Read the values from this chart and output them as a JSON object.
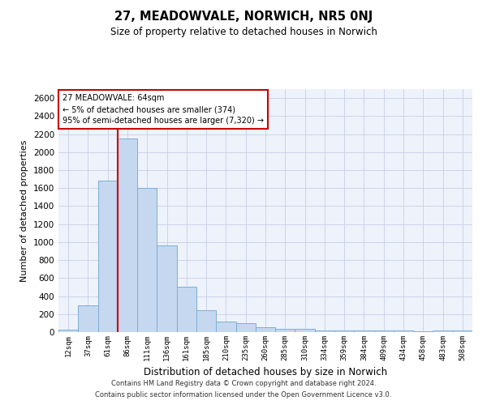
{
  "title": "27, MEADOWVALE, NORWICH, NR5 0NJ",
  "subtitle": "Size of property relative to detached houses in Norwich",
  "xlabel": "Distribution of detached houses by size in Norwich",
  "ylabel": "Number of detached properties",
  "categories": [
    "12sqm",
    "37sqm",
    "61sqm",
    "86sqm",
    "111sqm",
    "136sqm",
    "161sqm",
    "185sqm",
    "210sqm",
    "235sqm",
    "260sqm",
    "285sqm",
    "310sqm",
    "334sqm",
    "359sqm",
    "384sqm",
    "409sqm",
    "434sqm",
    "458sqm",
    "483sqm",
    "508sqm"
  ],
  "values": [
    25,
    300,
    1680,
    2150,
    1600,
    960,
    505,
    240,
    120,
    100,
    50,
    40,
    35,
    20,
    20,
    20,
    20,
    20,
    5,
    20,
    20
  ],
  "bar_color": "#c5d8f0",
  "bar_edge_color": "#7baed4",
  "ylim": [
    0,
    2700
  ],
  "yticks": [
    0,
    200,
    400,
    600,
    800,
    1000,
    1200,
    1400,
    1600,
    1800,
    2000,
    2200,
    2400,
    2600
  ],
  "vline_color": "#cc0000",
  "annotation_text": "27 MEADOWVALE: 64sqm\n← 5% of detached houses are smaller (374)\n95% of semi-detached houses are larger (7,320) →",
  "annotation_box_color": "#cc0000",
  "footer1": "Contains HM Land Registry data © Crown copyright and database right 2024.",
  "footer2": "Contains public sector information licensed under the Open Government Licence v3.0.",
  "bg_color": "#eef2fb",
  "grid_color": "#c8cfe8"
}
